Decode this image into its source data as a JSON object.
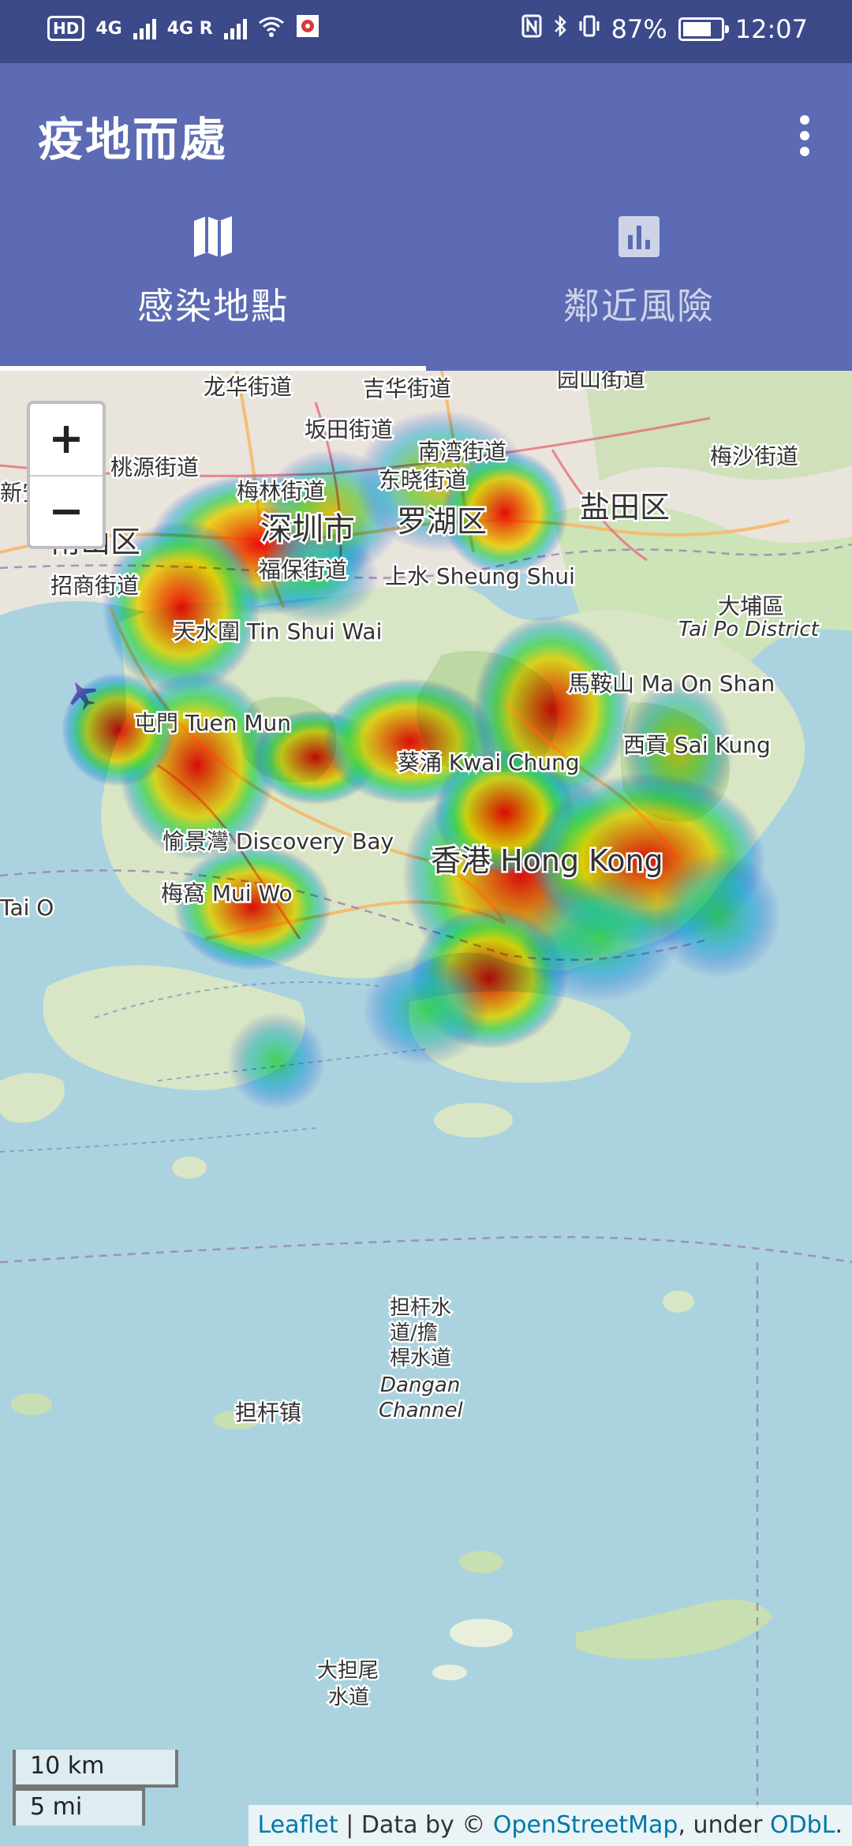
{
  "status_bar": {
    "left_badges": [
      "HD",
      "4G",
      "4G R"
    ],
    "battery": "87%",
    "time": "12:07",
    "battery_level": 0.87
  },
  "app": {
    "title": "疫地而處",
    "menu_icon": "more-vert-icon"
  },
  "tabs": [
    {
      "label": "感染地點",
      "icon": "map-icon",
      "selected": true
    },
    {
      "label": "鄰近風險",
      "icon": "bar-chart-icon",
      "selected": false
    }
  ],
  "map": {
    "zoom_in_label": "+",
    "zoom_out_label": "−",
    "scale_km": "10 km",
    "scale_mi": "5 mi",
    "attribution": {
      "leaflet": "Leaflet",
      "sep1": " | Data by © ",
      "osm": "OpenStreetMap",
      "sep2": ", under ",
      "odbl": "ODbL",
      "end": "."
    },
    "place_labels": {
      "longhua": "龙华街道",
      "jihua": "吉华街道",
      "yuanshan": "园山街道",
      "bantian": "坂田街道",
      "nanwan": "南湾街道",
      "meisha": "梅沙街道",
      "taoyuan": "桃源街道",
      "meilin": "梅林街道",
      "dongxiao": "东晓街道",
      "xinan": "新安街道",
      "shenzhen": "深圳市",
      "luohu": "罗湖区",
      "yantian": "盐田区",
      "nanshan": "南山区",
      "zhaoshang": "招商街道",
      "futian": "福保街道",
      "sheungshui": "上水 Sheung Shui",
      "taipo": "大埔區",
      "taipo_en": "Tai Po District",
      "tinshuiwai": "天水圍 Tin Shui Wai",
      "maonshan": "馬鞍山 Ma On Shan",
      "tuenmun": "屯門 Tuen Mun",
      "saikung": "西貢 Sai Kung",
      "kwaichung": "葵涌 Kwai Chung",
      "discoverybay": "愉景灣 Discovery Bay",
      "hongkong": "香港 Hong Kong",
      "muiwo": "梅窩 Mui Wo",
      "taio": "Tai O",
      "dangan1": "担杆水",
      "dangan2": "道/擔",
      "dangan3": "桿水道",
      "dangan_en1": "Dangan",
      "dangan_en2": "Channel",
      "danganzhen": "担杆镇",
      "dadanwei1": "大担尾",
      "dadanwei2": "水道"
    }
  }
}
